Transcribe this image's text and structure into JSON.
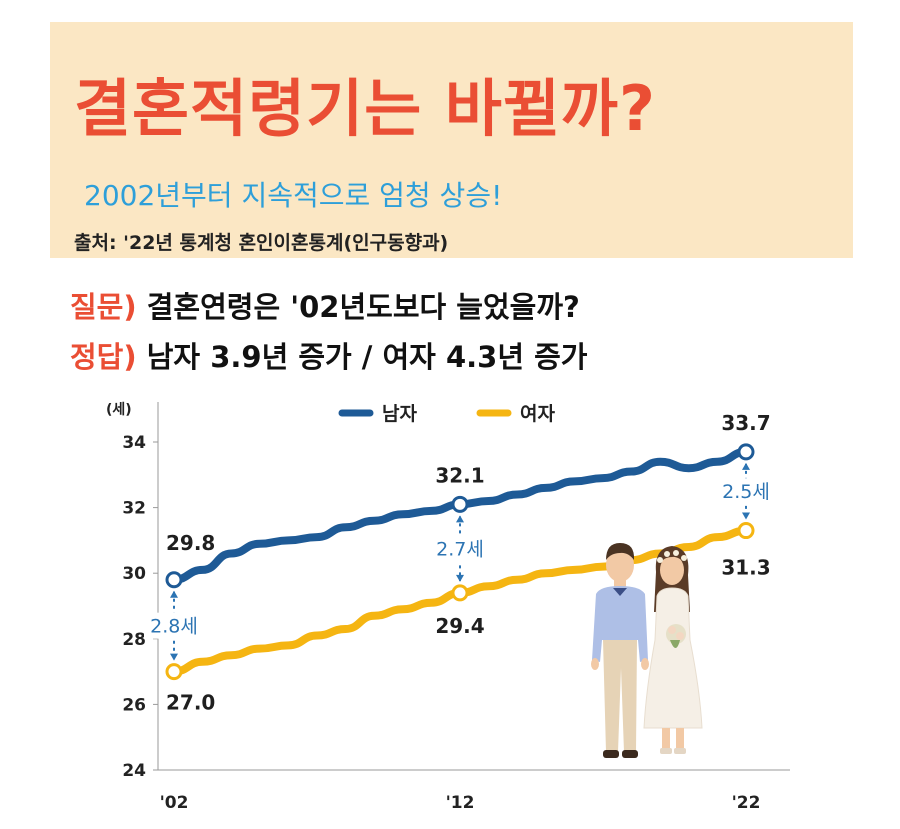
{
  "banner": {
    "title": "결혼적령기는 바뀔까?",
    "subtitle": "2002년부터 지속적으로 엄청 상승!",
    "source": "출처: '22년 통계청 혼인이혼통계(인구동향과)"
  },
  "qa": {
    "question_tag": "질문)",
    "question_text": "결혼연령은 '02년도보다 늘었을까?",
    "answer_tag": "정답)",
    "answer_text": "남자 3.9년 증가 / 여자 4.3년 증가"
  },
  "colors": {
    "male": "#1e5a96",
    "female": "#f5b512",
    "accent": "#ea4e34",
    "subtitle": "#2e9fd9",
    "gap": "#2c74b3"
  },
  "chart_data": {
    "type": "line",
    "unit": "(세)",
    "categories": [
      "'02",
      "'12",
      "'22"
    ],
    "ylim": [
      24,
      34
    ],
    "yticks": [
      24,
      26,
      28,
      30,
      32,
      34
    ],
    "grid": false,
    "legend_position": "top-center",
    "series": [
      {
        "name": "남자",
        "color": "#1e5a96",
        "x": [
          2002,
          2003,
          2004,
          2005,
          2006,
          2007,
          2008,
          2009,
          2010,
          2011,
          2012,
          2013,
          2014,
          2015,
          2016,
          2017,
          2018,
          2019,
          2020,
          2021,
          2022
        ],
        "values": [
          29.8,
          30.1,
          30.6,
          30.9,
          31.0,
          31.1,
          31.4,
          31.6,
          31.8,
          31.9,
          32.1,
          32.2,
          32.4,
          32.6,
          32.8,
          32.9,
          33.1,
          33.4,
          33.2,
          33.4,
          33.7
        ]
      },
      {
        "name": "여자",
        "color": "#f5b512",
        "x": [
          2002,
          2003,
          2004,
          2005,
          2006,
          2007,
          2008,
          2009,
          2010,
          2011,
          2012,
          2013,
          2014,
          2015,
          2016,
          2017,
          2018,
          2019,
          2020,
          2021,
          2022
        ],
        "values": [
          27.0,
          27.3,
          27.5,
          27.7,
          27.8,
          28.1,
          28.3,
          28.7,
          28.9,
          29.1,
          29.4,
          29.6,
          29.8,
          30.0,
          30.1,
          30.2,
          30.4,
          30.6,
          30.8,
          31.1,
          31.3
        ]
      }
    ],
    "markers": [
      {
        "year": 2002,
        "male": 29.8,
        "female": 27.0,
        "male_label": "29.8",
        "female_label": "27.0",
        "gap_label": "2.8세"
      },
      {
        "year": 2012,
        "male": 32.1,
        "female": 29.4,
        "male_label": "32.1",
        "female_label": "29.4",
        "gap_label": "2.7세"
      },
      {
        "year": 2022,
        "male": 33.7,
        "female": 31.3,
        "male_label": "33.7",
        "female_label": "31.3",
        "gap_label": "2.5세"
      }
    ]
  }
}
